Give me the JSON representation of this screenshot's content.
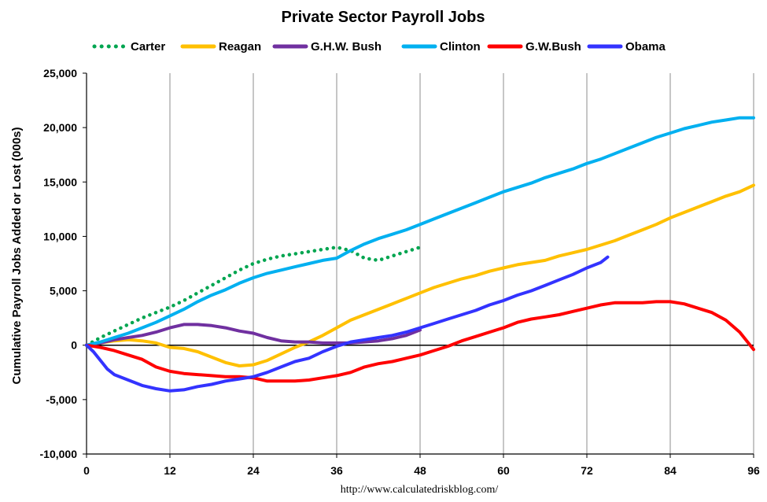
{
  "chart_data": {
    "type": "line",
    "title": "Private Sector Payroll Jobs",
    "ylabel": "Cumulative Payroll Jobs Added or  Lost (000s)",
    "xlabel": "",
    "source": "http://www.calculatedriskblog.com/",
    "xlim": [
      0,
      96
    ],
    "ylim": [
      -10000,
      25000
    ],
    "x_ticks": [
      0,
      12,
      24,
      36,
      48,
      60,
      72,
      84,
      96
    ],
    "y_ticks": [
      -10000,
      -5000,
      0,
      5000,
      10000,
      15000,
      20000,
      25000
    ],
    "y_tick_labels": [
      "-10,000",
      "-5,000",
      "0",
      "5,000",
      "10,000",
      "15,000",
      "20,000",
      "25,000"
    ],
    "grid": "vertical",
    "legend": "top",
    "series": [
      {
        "name": "Carter",
        "color": "#00a550",
        "dash": "dotted",
        "points": [
          [
            0,
            0
          ],
          [
            2,
            700
          ],
          [
            4,
            1300
          ],
          [
            6,
            1900
          ],
          [
            8,
            2500
          ],
          [
            10,
            3000
          ],
          [
            12,
            3500
          ],
          [
            14,
            4100
          ],
          [
            16,
            4800
          ],
          [
            18,
            5500
          ],
          [
            20,
            6200
          ],
          [
            22,
            6900
          ],
          [
            24,
            7500
          ],
          [
            26,
            7900
          ],
          [
            28,
            8200
          ],
          [
            30,
            8400
          ],
          [
            32,
            8600
          ],
          [
            34,
            8800
          ],
          [
            36,
            9000
          ],
          [
            38,
            8700
          ],
          [
            40,
            8000
          ],
          [
            42,
            7800
          ],
          [
            44,
            8200
          ],
          [
            46,
            8600
          ],
          [
            48,
            9000
          ]
        ]
      },
      {
        "name": "Reagan",
        "color": "#ffc000",
        "dash": "solid",
        "points": [
          [
            0,
            0
          ],
          [
            2,
            200
          ],
          [
            4,
            400
          ],
          [
            6,
            500
          ],
          [
            8,
            400
          ],
          [
            10,
            200
          ],
          [
            12,
            -200
          ],
          [
            14,
            -300
          ],
          [
            16,
            -600
          ],
          [
            18,
            -1100
          ],
          [
            20,
            -1600
          ],
          [
            22,
            -1900
          ],
          [
            24,
            -1800
          ],
          [
            26,
            -1400
          ],
          [
            28,
            -800
          ],
          [
            30,
            -200
          ],
          [
            32,
            300
          ],
          [
            34,
            900
          ],
          [
            36,
            1600
          ],
          [
            38,
            2300
          ],
          [
            40,
            2800
          ],
          [
            42,
            3300
          ],
          [
            44,
            3800
          ],
          [
            46,
            4300
          ],
          [
            48,
            4800
          ],
          [
            50,
            5300
          ],
          [
            52,
            5700
          ],
          [
            54,
            6100
          ],
          [
            56,
            6400
          ],
          [
            58,
            6800
          ],
          [
            60,
            7100
          ],
          [
            62,
            7400
          ],
          [
            64,
            7600
          ],
          [
            66,
            7800
          ],
          [
            68,
            8200
          ],
          [
            70,
            8500
          ],
          [
            72,
            8800
          ],
          [
            74,
            9200
          ],
          [
            76,
            9600
          ],
          [
            78,
            10100
          ],
          [
            80,
            10600
          ],
          [
            82,
            11100
          ],
          [
            84,
            11700
          ],
          [
            86,
            12200
          ],
          [
            88,
            12700
          ],
          [
            90,
            13200
          ],
          [
            92,
            13700
          ],
          [
            94,
            14100
          ],
          [
            96,
            14700
          ]
        ]
      },
      {
        "name": "G.H.W. Bush",
        "color": "#7030a0",
        "dash": "solid",
        "points": [
          [
            0,
            0
          ],
          [
            2,
            200
          ],
          [
            4,
            500
          ],
          [
            6,
            700
          ],
          [
            8,
            900
          ],
          [
            10,
            1200
          ],
          [
            12,
            1600
          ],
          [
            14,
            1900
          ],
          [
            16,
            1900
          ],
          [
            18,
            1800
          ],
          [
            20,
            1600
          ],
          [
            22,
            1300
          ],
          [
            24,
            1100
          ],
          [
            26,
            700
          ],
          [
            28,
            400
          ],
          [
            30,
            300
          ],
          [
            32,
            300
          ],
          [
            34,
            200
          ],
          [
            36,
            200
          ],
          [
            38,
            200
          ],
          [
            40,
            300
          ],
          [
            42,
            400
          ],
          [
            44,
            600
          ],
          [
            46,
            900
          ],
          [
            48,
            1400
          ]
        ]
      },
      {
        "name": "Clinton",
        "color": "#00b0f0",
        "dash": "solid",
        "points": [
          [
            0,
            0
          ],
          [
            2,
            300
          ],
          [
            4,
            700
          ],
          [
            6,
            1100
          ],
          [
            8,
            1600
          ],
          [
            10,
            2100
          ],
          [
            12,
            2700
          ],
          [
            14,
            3300
          ],
          [
            16,
            4000
          ],
          [
            18,
            4600
          ],
          [
            20,
            5100
          ],
          [
            22,
            5700
          ],
          [
            24,
            6200
          ],
          [
            26,
            6600
          ],
          [
            28,
            6900
          ],
          [
            30,
            7200
          ],
          [
            32,
            7500
          ],
          [
            34,
            7800
          ],
          [
            36,
            8000
          ],
          [
            38,
            8700
          ],
          [
            40,
            9300
          ],
          [
            42,
            9800
          ],
          [
            44,
            10200
          ],
          [
            46,
            10600
          ],
          [
            48,
            11100
          ],
          [
            50,
            11600
          ],
          [
            52,
            12100
          ],
          [
            54,
            12600
          ],
          [
            56,
            13100
          ],
          [
            58,
            13600
          ],
          [
            60,
            14100
          ],
          [
            62,
            14500
          ],
          [
            64,
            14900
          ],
          [
            66,
            15400
          ],
          [
            68,
            15800
          ],
          [
            70,
            16200
          ],
          [
            72,
            16700
          ],
          [
            74,
            17100
          ],
          [
            76,
            17600
          ],
          [
            78,
            18100
          ],
          [
            80,
            18600
          ],
          [
            82,
            19100
          ],
          [
            84,
            19500
          ],
          [
            86,
            19900
          ],
          [
            88,
            20200
          ],
          [
            90,
            20500
          ],
          [
            92,
            20700
          ],
          [
            94,
            20900
          ],
          [
            96,
            20900
          ]
        ]
      },
      {
        "name": "G.W.Bush",
        "color": "#ff0000",
        "dash": "solid",
        "points": [
          [
            0,
            0
          ],
          [
            2,
            -200
          ],
          [
            4,
            -500
          ],
          [
            6,
            -900
          ],
          [
            8,
            -1300
          ],
          [
            10,
            -2000
          ],
          [
            12,
            -2400
          ],
          [
            14,
            -2600
          ],
          [
            16,
            -2700
          ],
          [
            18,
            -2800
          ],
          [
            20,
            -2900
          ],
          [
            22,
            -2900
          ],
          [
            24,
            -3000
          ],
          [
            26,
            -3300
          ],
          [
            28,
            -3300
          ],
          [
            30,
            -3300
          ],
          [
            32,
            -3200
          ],
          [
            34,
            -3000
          ],
          [
            36,
            -2800
          ],
          [
            38,
            -2500
          ],
          [
            40,
            -2000
          ],
          [
            42,
            -1700
          ],
          [
            44,
            -1500
          ],
          [
            46,
            -1200
          ],
          [
            48,
            -900
          ],
          [
            50,
            -500
          ],
          [
            52,
            -100
          ],
          [
            54,
            400
          ],
          [
            56,
            800
          ],
          [
            58,
            1200
          ],
          [
            60,
            1600
          ],
          [
            62,
            2100
          ],
          [
            64,
            2400
          ],
          [
            66,
            2600
          ],
          [
            68,
            2800
          ],
          [
            70,
            3100
          ],
          [
            72,
            3400
          ],
          [
            74,
            3700
          ],
          [
            76,
            3900
          ],
          [
            78,
            3900
          ],
          [
            80,
            3900
          ],
          [
            82,
            4000
          ],
          [
            84,
            4000
          ],
          [
            86,
            3800
          ],
          [
            88,
            3400
          ],
          [
            90,
            3000
          ],
          [
            92,
            2300
          ],
          [
            94,
            1200
          ],
          [
            96,
            -400
          ]
        ]
      },
      {
        "name": "Obama",
        "color": "#3333ff",
        "dash": "solid",
        "points": [
          [
            0,
            0
          ],
          [
            1,
            -600
          ],
          [
            2,
            -1400
          ],
          [
            3,
            -2200
          ],
          [
            4,
            -2700
          ],
          [
            6,
            -3200
          ],
          [
            8,
            -3700
          ],
          [
            10,
            -4000
          ],
          [
            12,
            -4200
          ],
          [
            14,
            -4100
          ],
          [
            16,
            -3800
          ],
          [
            18,
            -3600
          ],
          [
            20,
            -3300
          ],
          [
            22,
            -3100
          ],
          [
            24,
            -2900
          ],
          [
            26,
            -2500
          ],
          [
            28,
            -2000
          ],
          [
            30,
            -1500
          ],
          [
            32,
            -1200
          ],
          [
            34,
            -600
          ],
          [
            36,
            -100
          ],
          [
            38,
            300
          ],
          [
            40,
            500
          ],
          [
            42,
            700
          ],
          [
            44,
            900
          ],
          [
            46,
            1200
          ],
          [
            48,
            1600
          ],
          [
            50,
            2000
          ],
          [
            52,
            2400
          ],
          [
            54,
            2800
          ],
          [
            56,
            3200
          ],
          [
            58,
            3700
          ],
          [
            60,
            4100
          ],
          [
            62,
            4600
          ],
          [
            64,
            5000
          ],
          [
            66,
            5500
          ],
          [
            68,
            6000
          ],
          [
            70,
            6500
          ],
          [
            72,
            7100
          ],
          [
            74,
            7600
          ],
          [
            75,
            8100
          ]
        ]
      }
    ]
  }
}
